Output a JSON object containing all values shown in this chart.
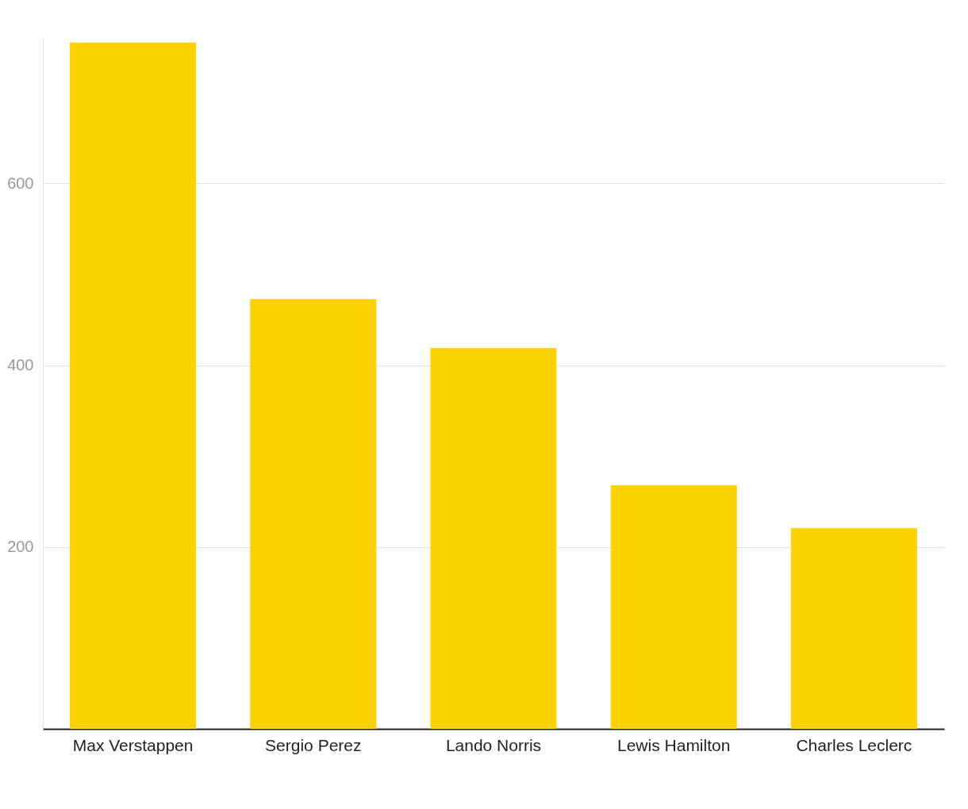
{
  "chart_data": {
    "type": "bar",
    "categories": [
      "Max Verstappen",
      "Sergio Perez",
      "Lando Norris",
      "Lewis Hamilton",
      "Charles Leclerc"
    ],
    "values": [
      755,
      473,
      419,
      268,
      221
    ],
    "color": "#fcd200",
    "ylim": [
      0,
      760
    ],
    "yticks": [
      200,
      400,
      600
    ],
    "grid": "y"
  }
}
